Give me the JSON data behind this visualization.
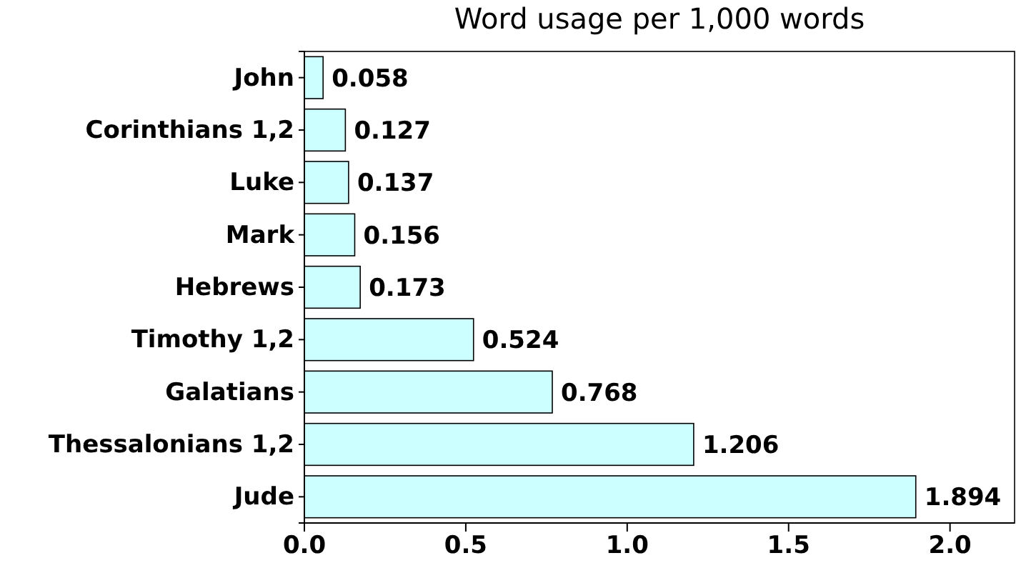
{
  "chart_data": {
    "type": "bar",
    "orientation": "horizontal",
    "title": "Word usage per 1,000 words",
    "categories": [
      "John",
      "Corinthians 1,2",
      "Luke",
      "Mark",
      "Hebrews",
      "Timothy 1,2",
      "Galatians",
      "Thessalonians 1,2",
      "Jude"
    ],
    "values": [
      0.058,
      0.127,
      0.137,
      0.156,
      0.173,
      0.524,
      0.768,
      1.206,
      1.894
    ],
    "color": "#ccffff",
    "xlim": [
      0,
      2.2
    ],
    "xticks": [
      {
        "value": 0,
        "label": "0.0"
      },
      {
        "value": 0.5,
        "label": "0.5"
      },
      {
        "value": 1,
        "label": "1.0"
      },
      {
        "value": 1.5,
        "label": "1.5"
      },
      {
        "value": 2,
        "label": "2.0"
      }
    ],
    "data_labels": true,
    "grid": false
  }
}
